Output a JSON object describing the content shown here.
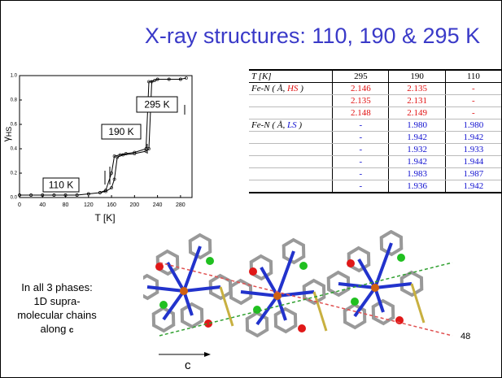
{
  "title": "X-ray structures: 110, 190 & 295 K",
  "chart_data": {
    "type": "line",
    "xlabel": "T [K]",
    "ylabel": {
      "symbol": "γ",
      "sub": "HS"
    },
    "x": [
      0,
      20,
      40,
      60,
      80,
      100,
      120,
      140,
      150,
      160,
      165,
      170,
      180,
      200,
      220,
      225,
      230,
      240,
      260,
      280,
      290,
      280,
      260,
      240,
      235,
      225,
      220,
      200,
      185,
      175,
      165,
      160,
      150,
      140,
      120,
      100,
      80,
      60,
      40,
      20,
      0
    ],
    "values": [
      0.02,
      0.02,
      0.02,
      0.02,
      0.02,
      0.02,
      0.03,
      0.04,
      0.05,
      0.08,
      0.15,
      0.33,
      0.35,
      0.36,
      0.38,
      0.4,
      0.95,
      0.97,
      0.97,
      0.97,
      0.98,
      0.97,
      0.97,
      0.97,
      0.96,
      0.95,
      0.4,
      0.37,
      0.36,
      0.35,
      0.34,
      0.2,
      0.06,
      0.04,
      0.03,
      0.02,
      0.02,
      0.02,
      0.02,
      0.02,
      0.02
    ],
    "color": "#000000",
    "xlim": [
      0,
      300
    ],
    "ylim": [
      0,
      1
    ],
    "xticks": [
      0,
      40,
      80,
      120,
      160,
      200,
      240,
      280
    ],
    "yticks": [
      {
        "value": 0,
        "label": "0.0"
      },
      0.2,
      0.4,
      0.6,
      0.8,
      {
        "value": 1,
        "label": "1.0"
      }
    ],
    "annotations": [
      "110 K",
      "190 K",
      "295 K"
    ]
  },
  "table": {
    "header": [
      "T [K]",
      "295",
      "190",
      "110"
    ],
    "sections": [
      {
        "label": {
          "pre": "Fe-N ( Å, ",
          "em": "HS",
          "post": " )"
        },
        "rows": [
          [
            "2.146",
            "2.135",
            "-"
          ],
          [
            "2.135",
            "2.131",
            "-"
          ],
          [
            "2.148",
            "2.149",
            "-"
          ]
        ]
      },
      {
        "label": {
          "pre": "Fe-N ( Å, ",
          "em": "LS",
          "post": " )"
        },
        "rows": [
          [
            "-",
            "1.980",
            "1.980"
          ],
          [
            "-",
            "1.942",
            "1.942"
          ],
          [
            "-",
            "1.932",
            "1.933"
          ],
          [
            "-",
            "1.942",
            "1.944"
          ],
          [
            "-",
            "1.983",
            "1.987"
          ],
          [
            "-",
            "1.936",
            "1.942"
          ]
        ]
      }
    ]
  },
  "caption": {
    "lines": [
      "In all 3 phases:",
      "1D supra-",
      "molecular chains"
    ],
    "last": {
      "text": "along ",
      "bold": "c"
    }
  },
  "axis_label": "c",
  "page_number": "48"
}
